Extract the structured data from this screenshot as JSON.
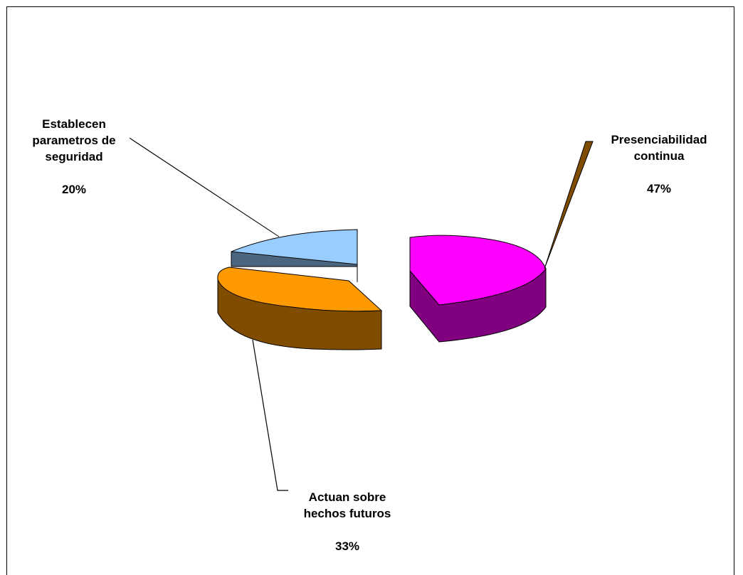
{
  "chart_data": {
    "type": "pie",
    "style": "3d-exploded",
    "legend": "none",
    "slices": [
      {
        "label": "Presenciabilidad\ncontinua",
        "value": 47,
        "value_label": "47%",
        "top_color": "#FF00FF",
        "side_color": "#800080"
      },
      {
        "label": "Actuan sobre\nhechos futuros",
        "value": 33,
        "value_label": "33%",
        "top_color": "#FF9900",
        "side_color": "#804D00"
      },
      {
        "label": "Establecen\nparametros de\nseguridad",
        "value": 20,
        "value_label": "20%",
        "top_color": "#99CCFF",
        "side_color": "#4D6680"
      }
    ]
  }
}
